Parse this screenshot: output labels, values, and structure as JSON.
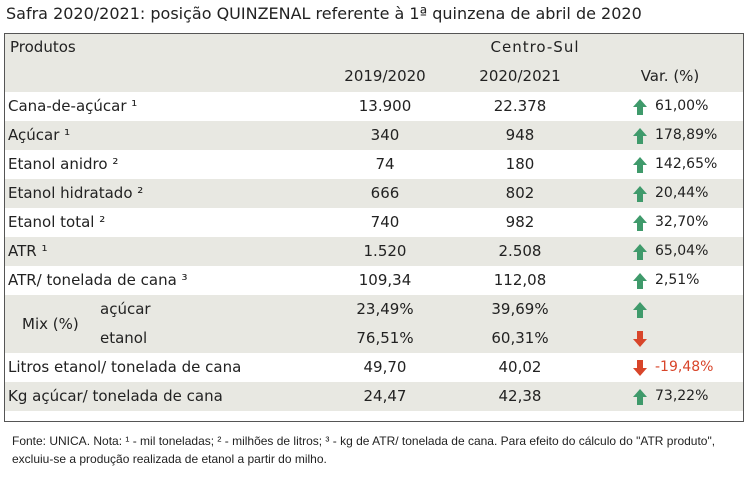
{
  "title": "Safra 2020/2021: posição QUINZENAL referente à 1ª quinzena de abril de 2020",
  "header": {
    "products": "Produtos",
    "region": "Centro-Sul",
    "col2019": "2019/2020",
    "col2020": "2020/2021",
    "colvar": "Var. (%)"
  },
  "rows": [
    {
      "product": "Cana-de-açúcar ¹",
      "v2019": "13.900",
      "v2020": "22.378",
      "var": "61,00%",
      "trend": "up"
    },
    {
      "product": "Açúcar ¹",
      "v2019": "340",
      "v2020": "948",
      "var": "178,89%",
      "trend": "up"
    },
    {
      "product": "Etanol anidro ²",
      "v2019": "74",
      "v2020": "180",
      "var": "142,65%",
      "trend": "up"
    },
    {
      "product": "Etanol hidratado ²",
      "v2019": "666",
      "v2020": "802",
      "var": "20,44%",
      "trend": "up"
    },
    {
      "product": "Etanol total ²",
      "v2019": "740",
      "v2020": "982",
      "var": "32,70%",
      "trend": "up"
    },
    {
      "product": "ATR ¹",
      "v2019": "1.520",
      "v2020": "2.508",
      "var": "65,04%",
      "trend": "up"
    },
    {
      "product": "ATR/ tonelada de cana ³",
      "v2019": "109,34",
      "v2020": "112,08",
      "var": "2,51%",
      "trend": "up"
    }
  ],
  "mix": {
    "label": "Mix (%)",
    "rows": [
      {
        "product": "açúcar",
        "v2019": "23,49%",
        "v2020": "39,69%",
        "trend": "up"
      },
      {
        "product": "etanol",
        "v2019": "76,51%",
        "v2020": "60,31%",
        "trend": "down"
      }
    ]
  },
  "rows_after": [
    {
      "product": "Litros etanol/ tonelada de cana",
      "v2019": "49,70",
      "v2020": "40,02",
      "var": "-19,48%",
      "trend": "down"
    },
    {
      "product": "Kg açúcar/ tonelada de cana",
      "v2019": "24,47",
      "v2020": "42,38",
      "var": "73,22%",
      "trend": "up"
    }
  ],
  "footnote": [
    "Fonte: UNICA. Nota: ¹ - mil toneladas; ² - milhões de litros; ³ - kg de ATR/ tonelada de cana. Para efeito do cálculo do \"ATR produto\",",
    "excluiu-se a produção realizada de etanol a partir do milho."
  ]
}
